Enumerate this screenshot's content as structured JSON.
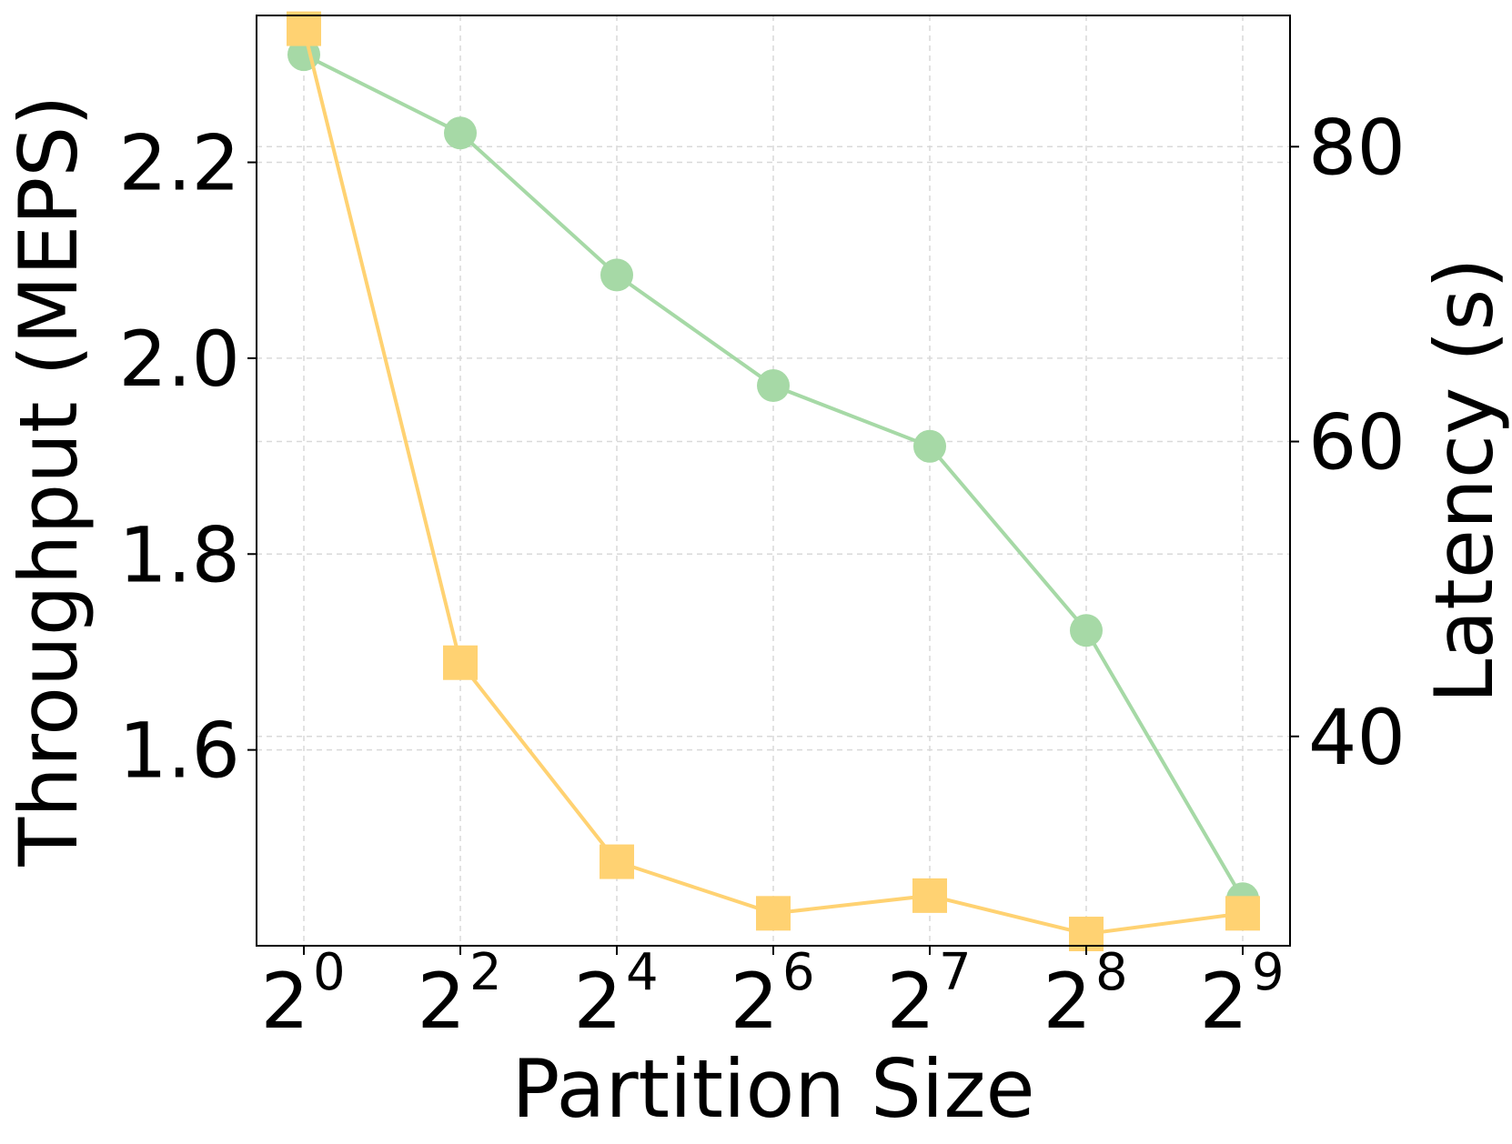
{
  "chart_data": {
    "type": "line",
    "xlabel": "Partition Size",
    "ylabel_left": "Throughput (MEPS)",
    "ylabel_right": "Latency (s)",
    "x_ticks": [
      {
        "base": "2",
        "exp": "0"
      },
      {
        "base": "2",
        "exp": "2"
      },
      {
        "base": "2",
        "exp": "4"
      },
      {
        "base": "2",
        "exp": "6"
      },
      {
        "base": "2",
        "exp": "7"
      },
      {
        "base": "2",
        "exp": "8"
      },
      {
        "base": "2",
        "exp": "9"
      }
    ],
    "y_left": {
      "ticks": [
        "1.6",
        "1.8",
        "2.0",
        "2.2"
      ],
      "tick_values": [
        1.6,
        1.8,
        2.0,
        2.2
      ],
      "ylim": [
        1.4,
        2.35
      ]
    },
    "y_right": {
      "ticks": [
        "40",
        "60",
        "80"
      ],
      "tick_values": [
        40,
        60,
        80
      ],
      "ylim": [
        25.8,
        88.9
      ]
    },
    "grid": true,
    "series": [
      {
        "axis": "left",
        "marker": "circle",
        "color": "#a6d9a6",
        "values": [
          2.31,
          2.23,
          2.085,
          1.972,
          1.91,
          1.722,
          1.448
        ]
      },
      {
        "axis": "right",
        "marker": "square",
        "color": "#ffd272",
        "values": [
          88.0,
          45.0,
          31.5,
          28.0,
          29.2,
          26.6,
          28.0
        ]
      }
    ]
  }
}
